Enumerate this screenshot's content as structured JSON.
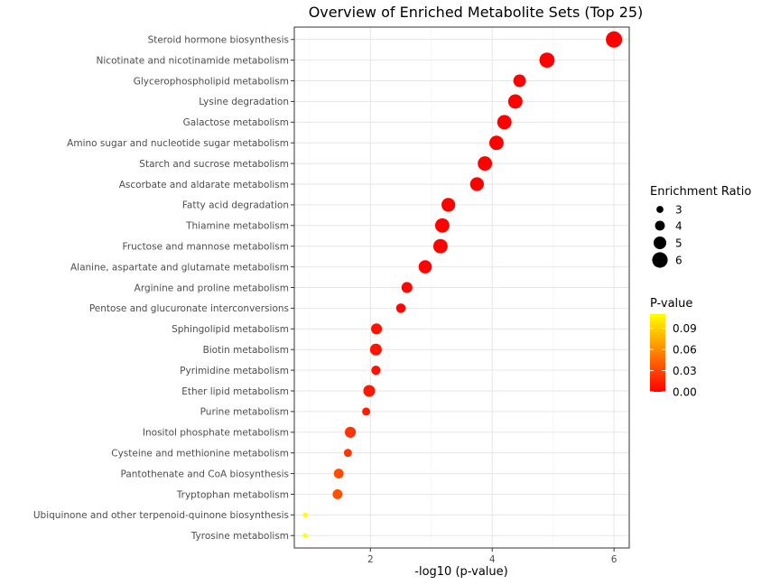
{
  "chart_data": {
    "type": "scatter",
    "title": "Overview of Enriched Metabolite Sets (Top 25)",
    "xlabel": "-log10 (p-value)",
    "ylabel": "",
    "xlim": [
      0.75,
      6.25
    ],
    "xticks": [
      "2",
      "4",
      "6"
    ],
    "xtick_values": [
      2,
      4,
      6
    ],
    "grid": true,
    "points": [
      {
        "label": "Steroid hormone biosynthesis",
        "x": 6.0,
        "ratio": 6.3,
        "p": 1e-06
      },
      {
        "label": "Nicotinate and nicotinamide metabolism",
        "x": 4.9,
        "ratio": 5.9,
        "p": 1e-05
      },
      {
        "label": "Glycerophospholipid metabolism",
        "x": 4.45,
        "ratio": 5.0,
        "p": 4e-05
      },
      {
        "label": "Lysine degradation",
        "x": 4.38,
        "ratio": 5.6,
        "p": 4e-05
      },
      {
        "label": "Galactose metabolism",
        "x": 4.2,
        "ratio": 5.6,
        "p": 6e-05
      },
      {
        "label": "Amino sugar and nucleotide sugar metabolism",
        "x": 4.07,
        "ratio": 5.6,
        "p": 9e-05
      },
      {
        "label": "Starch and sucrose metabolism",
        "x": 3.88,
        "ratio": 5.6,
        "p": 0.00013
      },
      {
        "label": "Ascorbate and aldarate metabolism",
        "x": 3.75,
        "ratio": 5.4,
        "p": 0.00018
      },
      {
        "label": "Fatty acid degradation",
        "x": 3.28,
        "ratio": 5.4,
        "p": 0.0005
      },
      {
        "label": "Thiamine metabolism",
        "x": 3.18,
        "ratio": 5.6,
        "p": 0.0007
      },
      {
        "label": "Fructose and mannose metabolism",
        "x": 3.15,
        "ratio": 5.6,
        "p": 0.0007
      },
      {
        "label": "Alanine, aspartate and glutamate metabolism",
        "x": 2.9,
        "ratio": 5.2,
        "p": 0.0013
      },
      {
        "label": "Arginine and proline metabolism",
        "x": 2.6,
        "ratio": 4.4,
        "p": 0.0025
      },
      {
        "label": "Pentose and glucuronate interconversions",
        "x": 2.5,
        "ratio": 3.9,
        "p": 0.0032
      },
      {
        "label": "Sphingolipid metabolism",
        "x": 2.1,
        "ratio": 4.4,
        "p": 0.0079
      },
      {
        "label": "Biotin metabolism",
        "x": 2.09,
        "ratio": 4.7,
        "p": 0.0081
      },
      {
        "label": "Pyrimidine metabolism",
        "x": 2.09,
        "ratio": 3.8,
        "p": 0.0081
      },
      {
        "label": "Ether lipid metabolism",
        "x": 1.98,
        "ratio": 4.7,
        "p": 0.0105
      },
      {
        "label": "Purine metabolism",
        "x": 1.93,
        "ratio": 3.4,
        "p": 0.0117
      },
      {
        "label": "Inositol phosphate metabolism",
        "x": 1.67,
        "ratio": 4.4,
        "p": 0.0214
      },
      {
        "label": "Cysteine and methionine metabolism",
        "x": 1.63,
        "ratio": 3.4,
        "p": 0.0234
      },
      {
        "label": "Pantothenate and CoA biosynthesis",
        "x": 1.48,
        "ratio": 4.0,
        "p": 0.0331
      },
      {
        "label": "Tryptophan metabolism",
        "x": 1.46,
        "ratio": 4.0,
        "p": 0.0347
      },
      {
        "label": "Ubiquinone and other terpenoid-quinone biosynthesis",
        "x": 0.93,
        "ratio": 2.2,
        "p": 0.1175
      },
      {
        "label": "Tyrosine metabolism",
        "x": 0.93,
        "ratio": 2.2,
        "p": 0.1175
      }
    ],
    "size_legend": {
      "title": "Enrichment Ratio",
      "labels": [
        "3",
        "4",
        "5",
        "6"
      ],
      "values": [
        3,
        4,
        5,
        6
      ]
    },
    "color_legend": {
      "title": "P-value",
      "labels": [
        "0.09",
        "0.06",
        "0.03",
        "0.00"
      ],
      "values": [
        0.09,
        0.06,
        0.03,
        0.0
      ],
      "range": [
        0,
        0.11
      ],
      "low_color": "#ff0000",
      "high_color": "#ffff00"
    },
    "legend_position": "right"
  }
}
